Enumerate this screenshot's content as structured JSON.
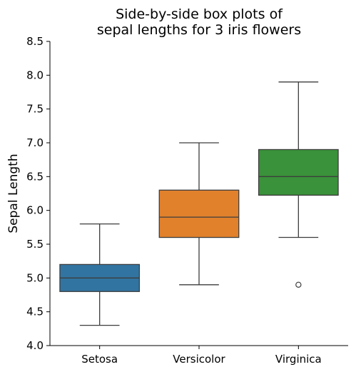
{
  "chart_data": {
    "type": "box",
    "title_lines": [
      "Side-by-side box plots of",
      "sepal lengths for 3 iris flowers"
    ],
    "xlabel": "",
    "ylabel": "Sepal Length",
    "ylim": [
      4.0,
      8.5
    ],
    "yticks": [
      "4.0",
      "4.5",
      "5.0",
      "5.5",
      "6.0",
      "6.5",
      "7.0",
      "7.5",
      "8.0",
      "8.5"
    ],
    "grid": false,
    "series": [
      {
        "category": "Setosa",
        "color": "#3274a1",
        "q1": 4.8,
        "median": 5.0,
        "q3": 5.2,
        "whisker_low": 4.3,
        "whisker_high": 5.8,
        "outliers": []
      },
      {
        "category": "Versicolor",
        "color": "#e1812c",
        "q1": 5.6,
        "median": 5.9,
        "q3": 6.3,
        "whisker_low": 4.9,
        "whisker_high": 7.0,
        "outliers": []
      },
      {
        "category": "Virginica",
        "color": "#3a923a",
        "q1": 6.225,
        "median": 6.5,
        "q3": 6.9,
        "whisker_low": 5.6,
        "whisker_high": 7.9,
        "outliers": [
          4.9
        ]
      }
    ]
  }
}
